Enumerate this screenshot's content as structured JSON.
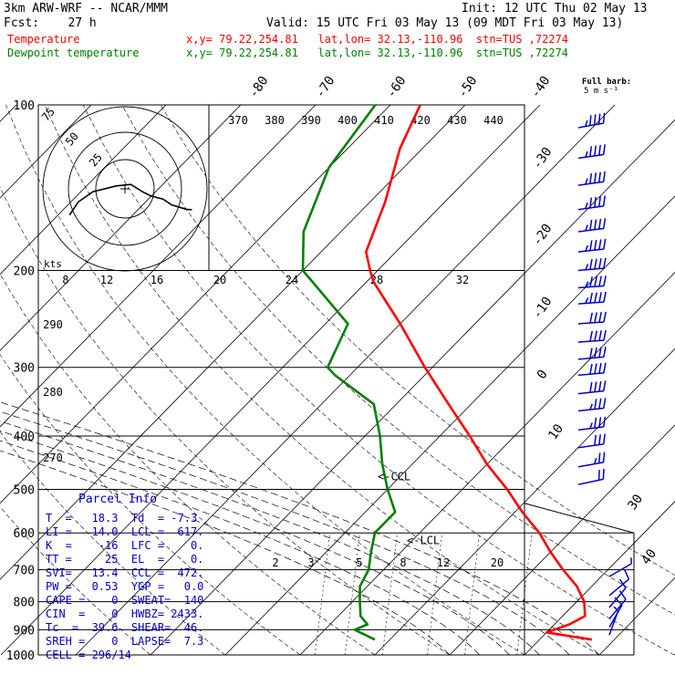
{
  "header": {
    "model": "3km ARW-WRF -- NCAR/MMM",
    "init": "Init: 12 UTC Thu 02 May 13",
    "fcst": "Fcst:    27 h",
    "valid": "Valid: 15 UTC Fri 03 May 13 (09 MDT Fri 03 May 13)",
    "temp_label": "Temperature",
    "dew_label": "Dewpoint temperature",
    "temp_loc": "x,y= 79.22,254.81   lat,lon= 32.13,-110.96  stn=TUS ,72274",
    "dew_loc": "x,y= 79.22,254.81   lat,lon= 32.13,-110.96  stn=TUS ,72274"
  },
  "barb_legend": {
    "title": "Full barb:",
    "unit": "5 m s⁻¹"
  },
  "colors": {
    "temperature": "#ff0000",
    "dewpoint": "#008000",
    "parcel": "#0000c8",
    "grid": "#000000"
  },
  "chart_data": {
    "type": "line",
    "title": "",
    "ylabel": "",
    "xlabel": "",
    "ylim": [
      1000,
      100
    ],
    "pressure_levels": [
      100,
      200,
      300,
      400,
      500,
      600,
      700,
      800,
      900,
      1000
    ],
    "isotherm_labels": [
      "-80",
      "-70",
      "-60",
      "-50",
      "-40",
      "-30",
      "-20",
      "-10",
      "0",
      "10",
      "30",
      "40"
    ],
    "theta_labels": [
      "370",
      "380",
      "390",
      "400",
      "410",
      "420",
      "430",
      "440"
    ],
    "theta_left_labels": [
      "290",
      "280",
      "270"
    ],
    "wind_speed_labels": [
      "8",
      "12",
      "16",
      "20",
      "24",
      "28",
      "32"
    ],
    "mixing_ratio_labels": [
      "2",
      "3",
      "5",
      "8",
      "12",
      "20"
    ],
    "hodograph_rings": [
      "75",
      "50",
      "25"
    ],
    "hodograph_unit": "kts",
    "markers": {
      "ccl": "<-CCL",
      "lcl": "<-LCL"
    },
    "series": [
      {
        "name": "Temperature",
        "points": [
          [
            938,
            27
          ],
          [
            910,
            20
          ],
          [
            880,
            22
          ],
          [
            850,
            23
          ],
          [
            800,
            21
          ],
          [
            750,
            18
          ],
          [
            700,
            14
          ],
          [
            650,
            10
          ],
          [
            600,
            6
          ],
          [
            550,
            1
          ],
          [
            500,
            -4
          ],
          [
            450,
            -10
          ],
          [
            400,
            -16
          ],
          [
            350,
            -23
          ],
          [
            300,
            -31
          ],
          [
            250,
            -40
          ],
          [
            210,
            -49
          ],
          [
            200,
            -51
          ],
          [
            185,
            -54
          ],
          [
            150,
            -58
          ],
          [
            120,
            -63
          ],
          [
            100,
            -66
          ]
        ]
      },
      {
        "name": "Dewpoint temperature",
        "points": [
          [
            938,
            -2
          ],
          [
            900,
            -6
          ],
          [
            880,
            -5
          ],
          [
            850,
            -7
          ],
          [
            800,
            -9
          ],
          [
            750,
            -11
          ],
          [
            700,
            -12
          ],
          [
            650,
            -14
          ],
          [
            600,
            -16
          ],
          [
            550,
            -16
          ],
          [
            500,
            -20
          ],
          [
            450,
            -24
          ],
          [
            400,
            -28
          ],
          [
            350,
            -33
          ],
          [
            310,
            -42
          ],
          [
            300,
            -44
          ],
          [
            250,
            -47
          ],
          [
            200,
            -60
          ],
          [
            170,
            -65
          ],
          [
            130,
            -70
          ],
          [
            100,
            -72
          ]
        ]
      }
    ],
    "hodograph": [
      [
        -1.9,
        0.9
      ],
      [
        -1.6,
        0.45
      ],
      [
        -1.1,
        0.1
      ],
      [
        -0.3,
        -0.1
      ],
      [
        0.2,
        -0.15
      ],
      [
        0.6,
        0.1
      ],
      [
        0.9,
        0.25
      ],
      [
        1.3,
        0.35
      ],
      [
        1.6,
        0.55
      ],
      [
        2.1,
        0.7
      ],
      [
        2.3,
        0.72
      ]
    ],
    "wind_barbs": [
      {
        "p": 110,
        "spd": 45,
        "dir": 260
      },
      {
        "p": 125,
        "spd": 45,
        "dir": 262
      },
      {
        "p": 140,
        "spd": 45,
        "dir": 262
      },
      {
        "p": 155,
        "spd": 45,
        "dir": 262
      },
      {
        "p": 170,
        "spd": 45,
        "dir": 263
      },
      {
        "p": 185,
        "spd": 45,
        "dir": 264
      },
      {
        "p": 200,
        "spd": 45,
        "dir": 265
      },
      {
        "p": 215,
        "spd": 45,
        "dir": 266
      },
      {
        "p": 230,
        "spd": 45,
        "dir": 266
      },
      {
        "p": 250,
        "spd": 40,
        "dir": 266
      },
      {
        "p": 270,
        "spd": 40,
        "dir": 266
      },
      {
        "p": 290,
        "spd": 40,
        "dir": 265
      },
      {
        "p": 310,
        "spd": 40,
        "dir": 265
      },
      {
        "p": 335,
        "spd": 40,
        "dir": 264
      },
      {
        "p": 360,
        "spd": 35,
        "dir": 264
      },
      {
        "p": 390,
        "spd": 35,
        "dir": 263
      },
      {
        "p": 420,
        "spd": 30,
        "dir": 262
      },
      {
        "p": 455,
        "spd": 25,
        "dir": 260
      },
      {
        "p": 490,
        "spd": 20,
        "dir": 258
      },
      {
        "p": 720,
        "spd": 5,
        "dir": 240
      },
      {
        "p": 780,
        "spd": 10,
        "dir": 230
      },
      {
        "p": 820,
        "spd": 10,
        "dir": 220
      },
      {
        "p": 860,
        "spd": 10,
        "dir": 220
      },
      {
        "p": 890,
        "spd": 10,
        "dir": 210
      },
      {
        "p": 920,
        "spd": 5,
        "dir": 200
      }
    ]
  },
  "parcel": {
    "title": "Parcel Info",
    "rows": [
      "T  =   18.3  Td  = -7.3",
      "LI =   14.0  LCL =  617.",
      "K  =    -16  LFC =    0.",
      "TT =     25  EL  =    0.",
      "SVI=   13.4  CCL =  472.",
      "PW =   0.53  YGP =   0.0",
      "CAPE =    0  SWEAT=  140",
      "CIN  =    0  HWBZ= 2433.",
      "Tc  =  39.6  SHEAR=  46.",
      "SREH =    0  LAPSE=  7.3",
      "CELL = 296/14"
    ]
  }
}
